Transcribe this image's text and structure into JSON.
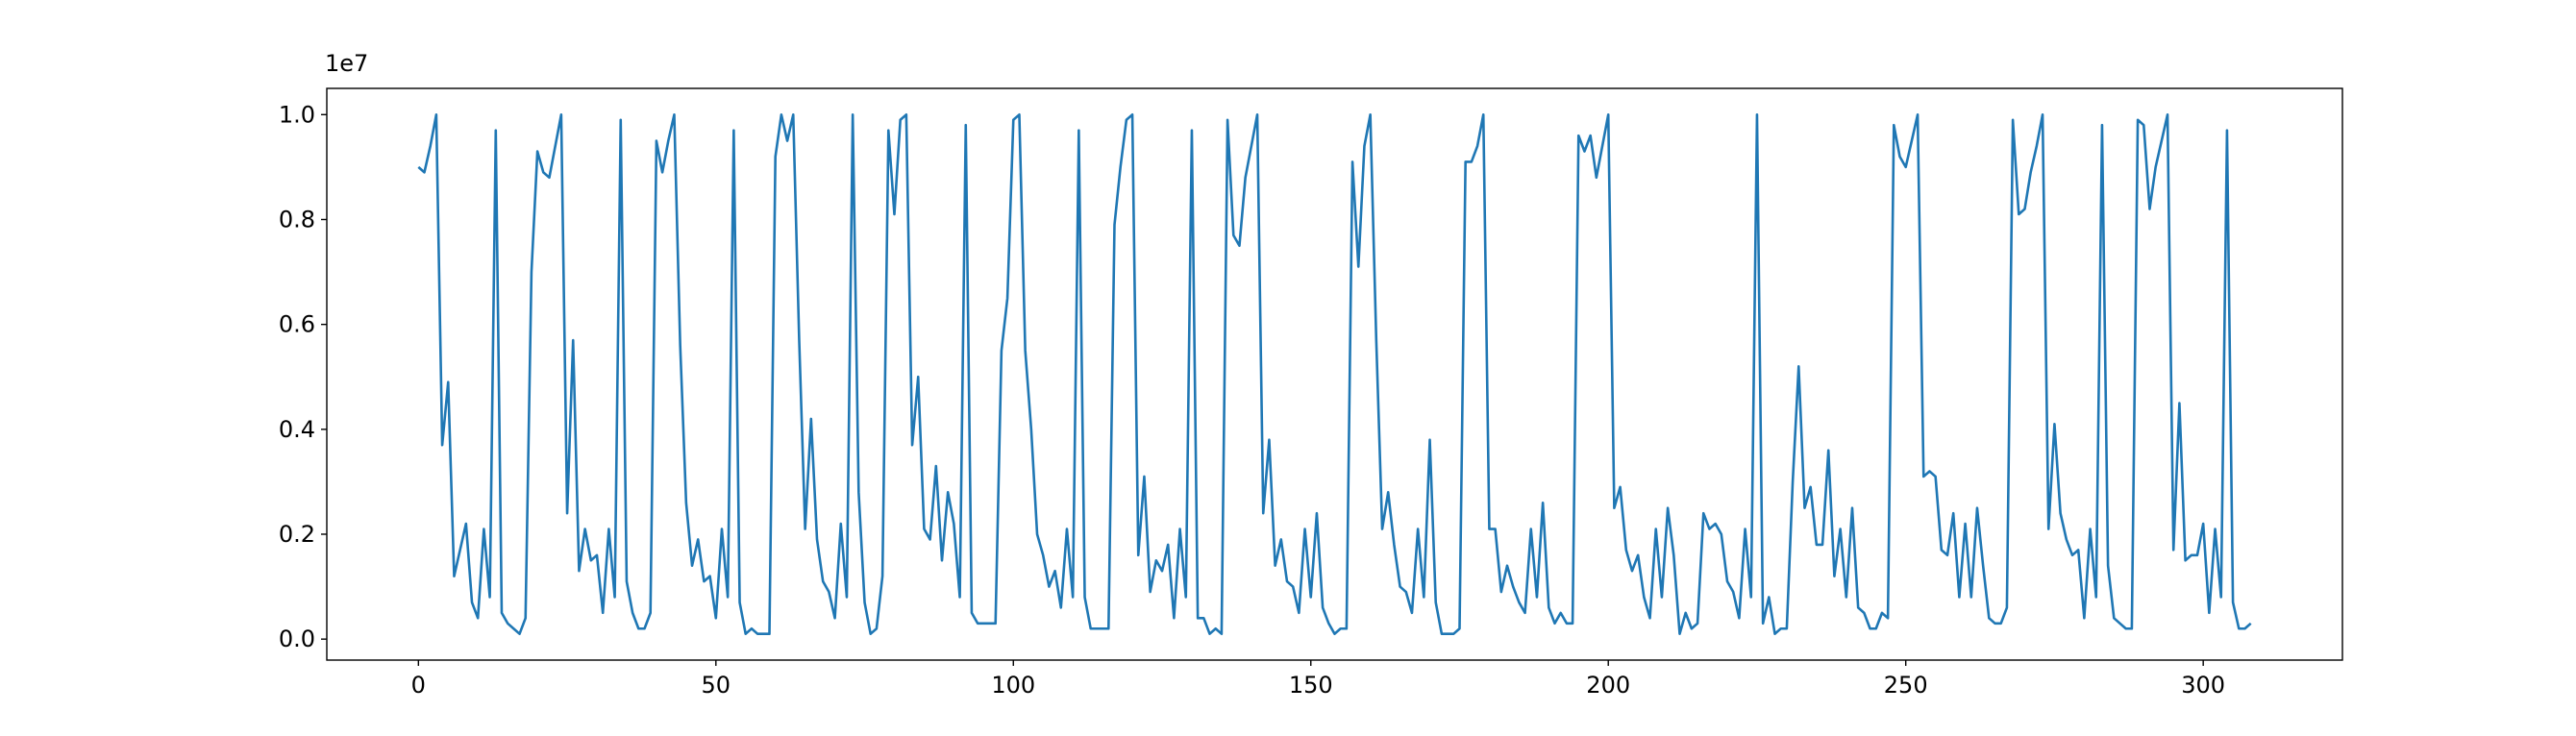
{
  "chart_data": {
    "type": "line",
    "offset_label": "1e7",
    "color": "#1f77b4",
    "x": [
      0,
      1,
      2,
      3,
      4,
      5,
      6,
      7,
      8,
      9,
      10,
      11,
      12,
      13,
      14,
      15,
      16,
      17,
      18,
      19,
      20,
      21,
      22,
      23,
      24,
      25,
      26,
      27,
      28,
      29,
      30,
      31,
      32,
      33,
      34,
      35,
      36,
      37,
      38,
      39,
      40,
      41,
      42,
      43,
      44,
      45,
      46,
      47,
      48,
      49,
      50,
      51,
      52,
      53,
      54,
      55,
      56,
      57,
      58,
      59,
      60,
      61,
      62,
      63,
      64,
      65,
      66,
      67,
      68,
      69,
      70,
      71,
      72,
      73,
      74,
      75,
      76,
      77,
      78,
      79,
      80,
      81,
      82,
      83,
      84,
      85,
      86,
      87,
      88,
      89,
      90,
      91,
      92,
      93,
      94,
      95,
      96,
      97,
      98,
      99,
      100,
      101,
      102,
      103,
      104,
      105,
      106,
      107,
      108,
      109,
      110,
      111,
      112,
      113,
      114,
      115,
      116,
      117,
      118,
      119,
      120,
      121,
      122,
      123,
      124,
      125,
      126,
      127,
      128,
      129,
      130,
      131,
      132,
      133,
      134,
      135,
      136,
      137,
      138,
      139,
      140,
      141,
      142,
      143,
      144,
      145,
      146,
      147,
      148,
      149,
      150,
      151,
      152,
      153,
      154,
      155,
      156,
      157,
      158,
      159,
      160,
      161,
      162,
      163,
      164,
      165,
      166,
      167,
      168,
      169,
      170,
      171,
      172,
      173,
      174,
      175,
      176,
      177,
      178,
      179,
      180,
      181,
      182,
      183,
      184,
      185,
      186,
      187,
      188,
      189,
      190,
      191,
      192,
      193,
      194,
      195,
      196,
      197,
      198,
      199,
      200,
      201,
      202,
      203,
      204,
      205,
      206,
      207,
      208,
      209,
      210,
      211,
      212,
      213,
      214,
      215,
      216,
      217,
      218,
      219,
      220,
      221,
      222,
      223,
      224,
      225,
      226,
      227,
      228,
      229,
      230,
      231,
      232,
      233,
      234,
      235,
      236,
      237,
      238,
      239,
      240,
      241,
      242,
      243,
      244,
      245,
      246,
      247,
      248,
      249,
      250,
      251,
      252,
      253,
      254,
      255,
      256,
      257,
      258,
      259,
      260,
      261,
      262,
      263,
      264,
      265,
      266,
      267,
      268,
      269,
      270,
      271,
      272,
      273,
      274,
      275,
      276,
      277,
      278,
      279,
      280,
      281,
      282,
      283,
      284,
      285,
      286,
      287,
      288,
      289,
      290,
      291,
      292,
      293,
      294,
      295,
      296,
      297,
      298,
      299,
      300,
      301,
      302,
      303,
      304,
      305,
      306,
      307,
      308
    ],
    "values": [
      0.9,
      0.89,
      0.94,
      1.0,
      0.37,
      0.49,
      0.12,
      0.17,
      0.22,
      0.07,
      0.04,
      0.21,
      0.08,
      0.97,
      0.05,
      0.03,
      0.02,
      0.01,
      0.04,
      0.7,
      0.93,
      0.89,
      0.88,
      0.94,
      1.0,
      0.24,
      0.57,
      0.13,
      0.21,
      0.15,
      0.16,
      0.05,
      0.21,
      0.08,
      0.99,
      0.11,
      0.05,
      0.02,
      0.02,
      0.05,
      0.95,
      0.89,
      0.95,
      1.0,
      0.56,
      0.26,
      0.14,
      0.19,
      0.11,
      0.12,
      0.04,
      0.21,
      0.08,
      0.97,
      0.07,
      0.01,
      0.02,
      0.01,
      0.01,
      0.01,
      0.92,
      1.0,
      0.95,
      1.0,
      0.57,
      0.21,
      0.42,
      0.19,
      0.11,
      0.09,
      0.04,
      0.22,
      0.08,
      1.0,
      0.28,
      0.07,
      0.01,
      0.02,
      0.12,
      0.97,
      0.81,
      0.99,
      1.0,
      0.37,
      0.5,
      0.21,
      0.19,
      0.33,
      0.15,
      0.28,
      0.22,
      0.08,
      0.98,
      0.05,
      0.03,
      0.03,
      0.03,
      0.03,
      0.55,
      0.65,
      0.99,
      1.0,
      0.55,
      0.4,
      0.2,
      0.16,
      0.1,
      0.13,
      0.06,
      0.21,
      0.08,
      0.97,
      0.08,
      0.02,
      0.02,
      0.02,
      0.02,
      0.79,
      0.9,
      0.99,
      1.0,
      0.16,
      0.31,
      0.09,
      0.15,
      0.13,
      0.18,
      0.04,
      0.21,
      0.08,
      0.97,
      0.04,
      0.04,
      0.01,
      0.02,
      0.01,
      0.99,
      0.77,
      0.75,
      0.88,
      0.94,
      1.0,
      0.24,
      0.38,
      0.14,
      0.19,
      0.11,
      0.1,
      0.05,
      0.21,
      0.08,
      0.24,
      0.06,
      0.03,
      0.01,
      0.02,
      0.02,
      0.91,
      0.71,
      0.94,
      1.0,
      0.57,
      0.21,
      0.28,
      0.18,
      0.1,
      0.09,
      0.05,
      0.21,
      0.08,
      0.38,
      0.07,
      0.01,
      0.01,
      0.01,
      0.02,
      0.91,
      0.91,
      0.94,
      1.0,
      0.21,
      0.21,
      0.09,
      0.14,
      0.1,
      0.07,
      0.05,
      0.21,
      0.08,
      0.26,
      0.06,
      0.03,
      0.05,
      0.03,
      0.03,
      0.96,
      0.93,
      0.96,
      0.88,
      0.94,
      1.0,
      0.25,
      0.29,
      0.17,
      0.13,
      0.16,
      0.08,
      0.04,
      0.21,
      0.08,
      0.25,
      0.16,
      0.01,
      0.05,
      0.02,
      0.03,
      0.24,
      0.21,
      0.22,
      0.2,
      0.11,
      0.09,
      0.04,
      0.21,
      0.08,
      1.0,
      0.03,
      0.08,
      0.01,
      0.02,
      0.02,
      0.3,
      0.52,
      0.25,
      0.29,
      0.18,
      0.18,
      0.36,
      0.12,
      0.21,
      0.08,
      0.25,
      0.06,
      0.05,
      0.02,
      0.02,
      0.05,
      0.04,
      0.98,
      0.92,
      0.9,
      0.95,
      1.0,
      0.31,
      0.32,
      0.31,
      0.17,
      0.16,
      0.24,
      0.08,
      0.22,
      0.08,
      0.25,
      0.14,
      0.04,
      0.03,
      0.03,
      0.06,
      0.99,
      0.81,
      0.82,
      0.89,
      0.94,
      1.0,
      0.21,
      0.41,
      0.24,
      0.19,
      0.16,
      0.17,
      0.04,
      0.21,
      0.08,
      0.98,
      0.14,
      0.04,
      0.03,
      0.02,
      0.02,
      0.99,
      0.98,
      0.82,
      0.9,
      0.95,
      1.0,
      0.17,
      0.45,
      0.15,
      0.16,
      0.16,
      0.22,
      0.05,
      0.21,
      0.08,
      0.97,
      0.07,
      0.02,
      0.02,
      0.03
    ],
    "xlim": [
      -15.4,
      323.4
    ],
    "xticks": [
      0,
      50,
      100,
      150,
      200,
      250,
      300
    ],
    "ylim": [
      -0.04,
      1.05
    ],
    "yticks": [
      {
        "value": 0,
        "label": "0.0"
      },
      0.2,
      0.4,
      0.6,
      0.8,
      {
        "value": 1,
        "label": "1.0"
      }
    ]
  }
}
